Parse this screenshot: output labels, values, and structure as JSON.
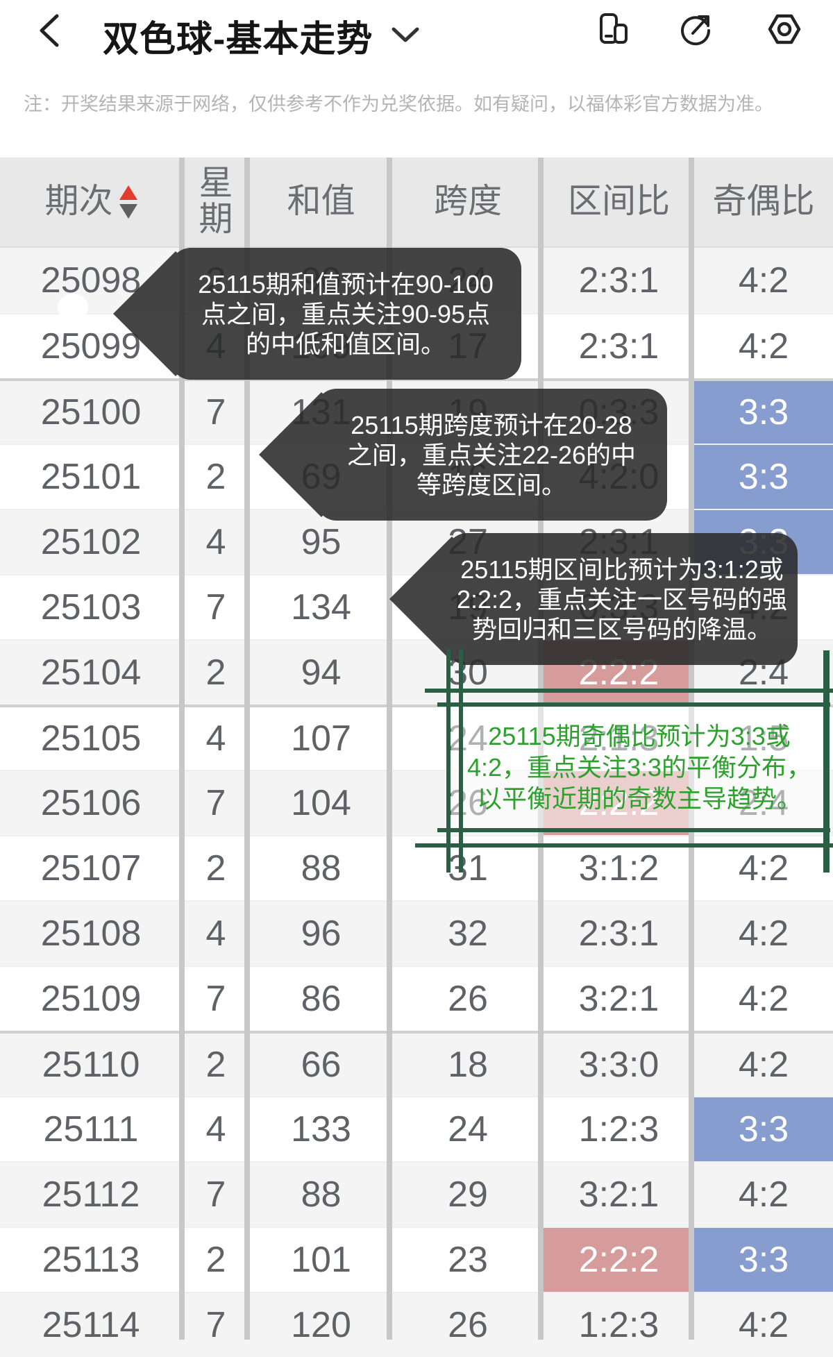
{
  "appbar": {
    "title": "双色球-基本走势"
  },
  "disclaimer": "注：开奖结果来源于网络，仅供参考不作为兑奖依据。如有疑问，以福体彩官方数据为准。",
  "table": {
    "columns": [
      "期次",
      "星期",
      "和值",
      "跨度",
      "区间比",
      "奇偶比"
    ],
    "rows": [
      {
        "period": "25098",
        "week": "2",
        "sum": "90",
        "span": "24",
        "zone": "2:3:1",
        "parity": "4:2",
        "zone_hl": false,
        "parity_hl": false,
        "group_start": false
      },
      {
        "period": "25099",
        "week": "4",
        "sum": "109",
        "span": "17",
        "zone": "2:3:1",
        "parity": "4:2",
        "zone_hl": false,
        "parity_hl": false,
        "group_start": false
      },
      {
        "period": "25100",
        "week": "7",
        "sum": "131",
        "span": "19",
        "zone": "0:3:3",
        "parity": "3:3",
        "zone_hl": false,
        "parity_hl": true,
        "group_start": true
      },
      {
        "period": "25101",
        "week": "2",
        "sum": "69",
        "span": "16",
        "zone": "4:2:0",
        "parity": "3:3",
        "zone_hl": false,
        "parity_hl": true,
        "group_start": false
      },
      {
        "period": "25102",
        "week": "4",
        "sum": "95",
        "span": "27",
        "zone": "2:3:1",
        "parity": "3:3",
        "zone_hl": false,
        "parity_hl": true,
        "group_start": false
      },
      {
        "period": "25103",
        "week": "7",
        "sum": "134",
        "span": "19",
        "zone": "0:3:3",
        "parity": "4:2",
        "zone_hl": false,
        "parity_hl": false,
        "group_start": false
      },
      {
        "period": "25104",
        "week": "2",
        "sum": "94",
        "span": "30",
        "zone": "2:2:2",
        "parity": "2:4",
        "zone_hl": true,
        "parity_hl": false,
        "group_start": false
      },
      {
        "period": "25105",
        "week": "4",
        "sum": "107",
        "span": "24",
        "zone": "2:1:3",
        "parity": "1:5",
        "zone_hl": false,
        "parity_hl": false,
        "group_start": true
      },
      {
        "period": "25106",
        "week": "7",
        "sum": "104",
        "span": "26",
        "zone": "2:2:2",
        "parity": "2:4",
        "zone_hl": true,
        "parity_hl": false,
        "group_start": false
      },
      {
        "period": "25107",
        "week": "2",
        "sum": "88",
        "span": "31",
        "zone": "3:1:2",
        "parity": "4:2",
        "zone_hl": false,
        "parity_hl": false,
        "group_start": false
      },
      {
        "period": "25108",
        "week": "4",
        "sum": "96",
        "span": "32",
        "zone": "2:3:1",
        "parity": "4:2",
        "zone_hl": false,
        "parity_hl": false,
        "group_start": false
      },
      {
        "period": "25109",
        "week": "7",
        "sum": "86",
        "span": "26",
        "zone": "3:2:1",
        "parity": "4:2",
        "zone_hl": false,
        "parity_hl": false,
        "group_start": false
      },
      {
        "period": "25110",
        "week": "2",
        "sum": "66",
        "span": "18",
        "zone": "3:3:0",
        "parity": "4:2",
        "zone_hl": false,
        "parity_hl": false,
        "group_start": true
      },
      {
        "period": "25111",
        "week": "4",
        "sum": "133",
        "span": "24",
        "zone": "1:2:3",
        "parity": "3:3",
        "zone_hl": false,
        "parity_hl": true,
        "group_start": false
      },
      {
        "period": "25112",
        "week": "7",
        "sum": "88",
        "span": "29",
        "zone": "3:2:1",
        "parity": "4:2",
        "zone_hl": false,
        "parity_hl": false,
        "group_start": false
      },
      {
        "period": "25113",
        "week": "2",
        "sum": "101",
        "span": "23",
        "zone": "2:2:2",
        "parity": "3:3",
        "zone_hl": true,
        "parity_hl": true,
        "group_start": false
      },
      {
        "period": "25114",
        "week": "7",
        "sum": "120",
        "span": "26",
        "zone": "1:2:3",
        "parity": "4:2",
        "zone_hl": false,
        "parity_hl": false,
        "group_start": false
      }
    ]
  },
  "tooltips": [
    {
      "name": "sum-prediction",
      "lines": [
        "25115期和值预计在90-100",
        "点之间，重点关注90-95点",
        "的中低和值区间。"
      ]
    },
    {
      "name": "span-prediction",
      "lines": [
        "25115期跨度预计在20-28",
        "之间，重点关注22-26的中",
        "等跨度区间。"
      ]
    },
    {
      "name": "zone-prediction",
      "lines": [
        "25115期区间比预计为3:1:2或",
        "2:2:2，重点关注一区号码的强",
        "势回归和三区号码的降温。"
      ]
    }
  ],
  "annotation": {
    "lines": [
      "25115期奇偶比预计为3:3或",
      "4:2，重点关注3:3的平衡分布，",
      "以平衡近期的奇数主导趋势。"
    ]
  },
  "colors": {
    "parity_highlight_blue": "#879CCF",
    "zone_highlight_pink": "#D69C9C",
    "tooltip_background": "#2A2A2A",
    "annotation_line_green": "#2B5F45",
    "annotation_text_green": "#2DA12D",
    "sort_arrow_red": "#E23B30",
    "header_background": "#E8E8E8"
  }
}
